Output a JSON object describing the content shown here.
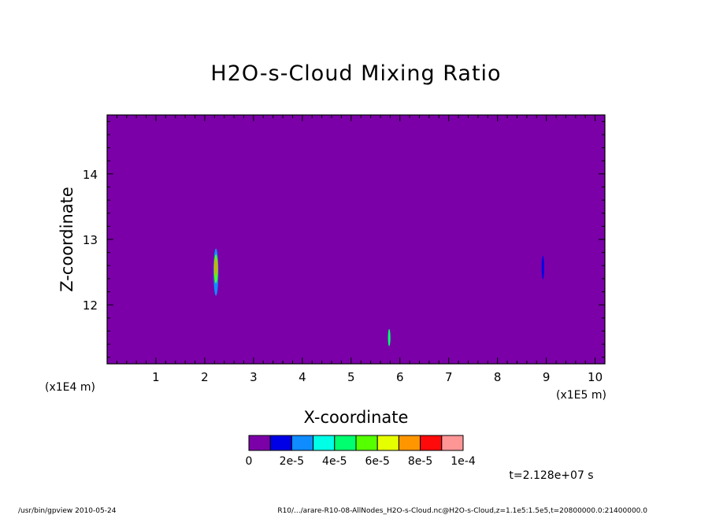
{
  "chart_data": {
    "type": "heatmap",
    "title": "H2O-s-Cloud Mixing Ratio",
    "xlabel": "X-coordinate",
    "ylabel": "Z-coordinate",
    "x_unit": "(x1E5 m)",
    "y_unit": "(x1E4 m)",
    "xlim": [
      0,
      10.2
    ],
    "ylim": [
      11.1,
      14.9
    ],
    "x_ticks": [
      1,
      2,
      3,
      4,
      5,
      6,
      7,
      8,
      9,
      10
    ],
    "y_ticks": [
      12,
      13,
      14
    ],
    "background_value": 0,
    "colorbar": {
      "colors": [
        "#7b00a8",
        "#0000e6",
        "#0f8cff",
        "#00ffe6",
        "#00ff6e",
        "#55ff00",
        "#e6ff00",
        "#ff9600",
        "#ff0a0a",
        "#ff9696"
      ],
      "labels": [
        "0",
        "2e-5",
        "4e-5",
        "6e-5",
        "8e-5",
        "1e-4"
      ]
    },
    "features": [
      {
        "x": 2.23,
        "z": 12.5,
        "x_halfwidth": 0.05,
        "z_halfheight": 0.36,
        "level": 2
      },
      {
        "x": 2.23,
        "z": 12.55,
        "x_halfwidth": 0.04,
        "z_halfheight": 0.22,
        "level": 5
      },
      {
        "x": 2.23,
        "z": 12.58,
        "x_halfwidth": 0.025,
        "z_halfheight": 0.13,
        "level": 7
      },
      {
        "x": 5.78,
        "z": 11.5,
        "x_halfwidth": 0.025,
        "z_halfheight": 0.13,
        "level": 4
      },
      {
        "x": 8.93,
        "z": 12.57,
        "x_halfwidth": 0.025,
        "z_halfheight": 0.18,
        "level": 1
      }
    ],
    "time_label": "t=2.128e+07 s"
  },
  "footer": {
    "left": "/usr/bin/gpview  2010-05-24",
    "right": "R10/.../arare-R10-08-AllNodes_H2O-s-Cloud.nc@H2O-s-Cloud,z=1.1e5:1.5e5,t=20800000.0:21400000.0"
  }
}
